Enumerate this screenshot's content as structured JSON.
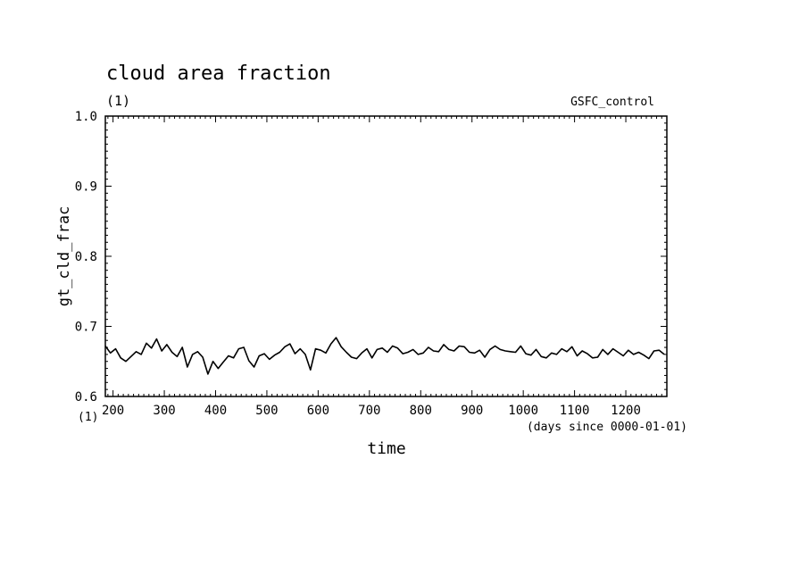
{
  "chart_data": {
    "type": "line",
    "title": "cloud area fraction",
    "units_label": "(1)",
    "run_label": "GSFC_control",
    "ylabel": "gt_cld_frac",
    "y_units_label": "(1)",
    "xlabel": "time",
    "x_units_note": "(days since 0000-01-01)",
    "xlim": [
      185,
      1280
    ],
    "ylim": [
      0.6,
      1.0
    ],
    "x_ticks": [
      200,
      300,
      400,
      500,
      600,
      700,
      800,
      900,
      1000,
      1100,
      1200
    ],
    "y_ticks": [
      "0.6",
      "0.7",
      "0.8",
      "0.9",
      "1.0"
    ],
    "grid": false,
    "colors": {
      "line": "#000000",
      "background": "#ffffff"
    },
    "series": [
      {
        "x": [
          185,
          195,
          205,
          215,
          225,
          235,
          245,
          255,
          265,
          275,
          285,
          295,
          305,
          315,
          325,
          335,
          345,
          355,
          365,
          375,
          385,
          395,
          405,
          415,
          425,
          435,
          445,
          455,
          465,
          475,
          485,
          495,
          505,
          515,
          525,
          535,
          545,
          555,
          565,
          575,
          585,
          595,
          605,
          615,
          625,
          635,
          645,
          655,
          665,
          675,
          685,
          695,
          705,
          715,
          725,
          735,
          745,
          755,
          765,
          775,
          785,
          795,
          805,
          815,
          825,
          835,
          845,
          855,
          865,
          875,
          885,
          895,
          905,
          915,
          925,
          935,
          945,
          955,
          965,
          975,
          985,
          995,
          1005,
          1015,
          1025,
          1035,
          1045,
          1055,
          1065,
          1075,
          1085,
          1095,
          1105,
          1115,
          1125,
          1135,
          1145,
          1155,
          1165,
          1175,
          1185,
          1195,
          1205,
          1215,
          1225,
          1235,
          1245,
          1255,
          1265,
          1275
        ],
        "values": [
          0.672,
          0.662,
          0.668,
          0.655,
          0.65,
          0.657,
          0.664,
          0.66,
          0.676,
          0.669,
          0.682,
          0.665,
          0.674,
          0.663,
          0.657,
          0.67,
          0.642,
          0.66,
          0.664,
          0.656,
          0.632,
          0.65,
          0.64,
          0.649,
          0.658,
          0.655,
          0.668,
          0.67,
          0.651,
          0.642,
          0.658,
          0.661,
          0.653,
          0.659,
          0.663,
          0.671,
          0.675,
          0.661,
          0.668,
          0.66,
          0.638,
          0.668,
          0.666,
          0.662,
          0.675,
          0.684,
          0.671,
          0.663,
          0.656,
          0.654,
          0.662,
          0.668,
          0.655,
          0.667,
          0.669,
          0.663,
          0.672,
          0.669,
          0.661,
          0.663,
          0.667,
          0.66,
          0.662,
          0.67,
          0.665,
          0.664,
          0.674,
          0.667,
          0.665,
          0.672,
          0.671,
          0.663,
          0.662,
          0.666,
          0.656,
          0.667,
          0.672,
          0.667,
          0.665,
          0.664,
          0.663,
          0.672,
          0.661,
          0.659,
          0.667,
          0.657,
          0.655,
          0.662,
          0.66,
          0.668,
          0.664,
          0.671,
          0.658,
          0.665,
          0.661,
          0.655,
          0.656,
          0.667,
          0.66,
          0.668,
          0.663,
          0.658,
          0.666,
          0.66,
          0.663,
          0.659,
          0.654,
          0.665,
          0.666,
          0.66
        ]
      }
    ]
  }
}
